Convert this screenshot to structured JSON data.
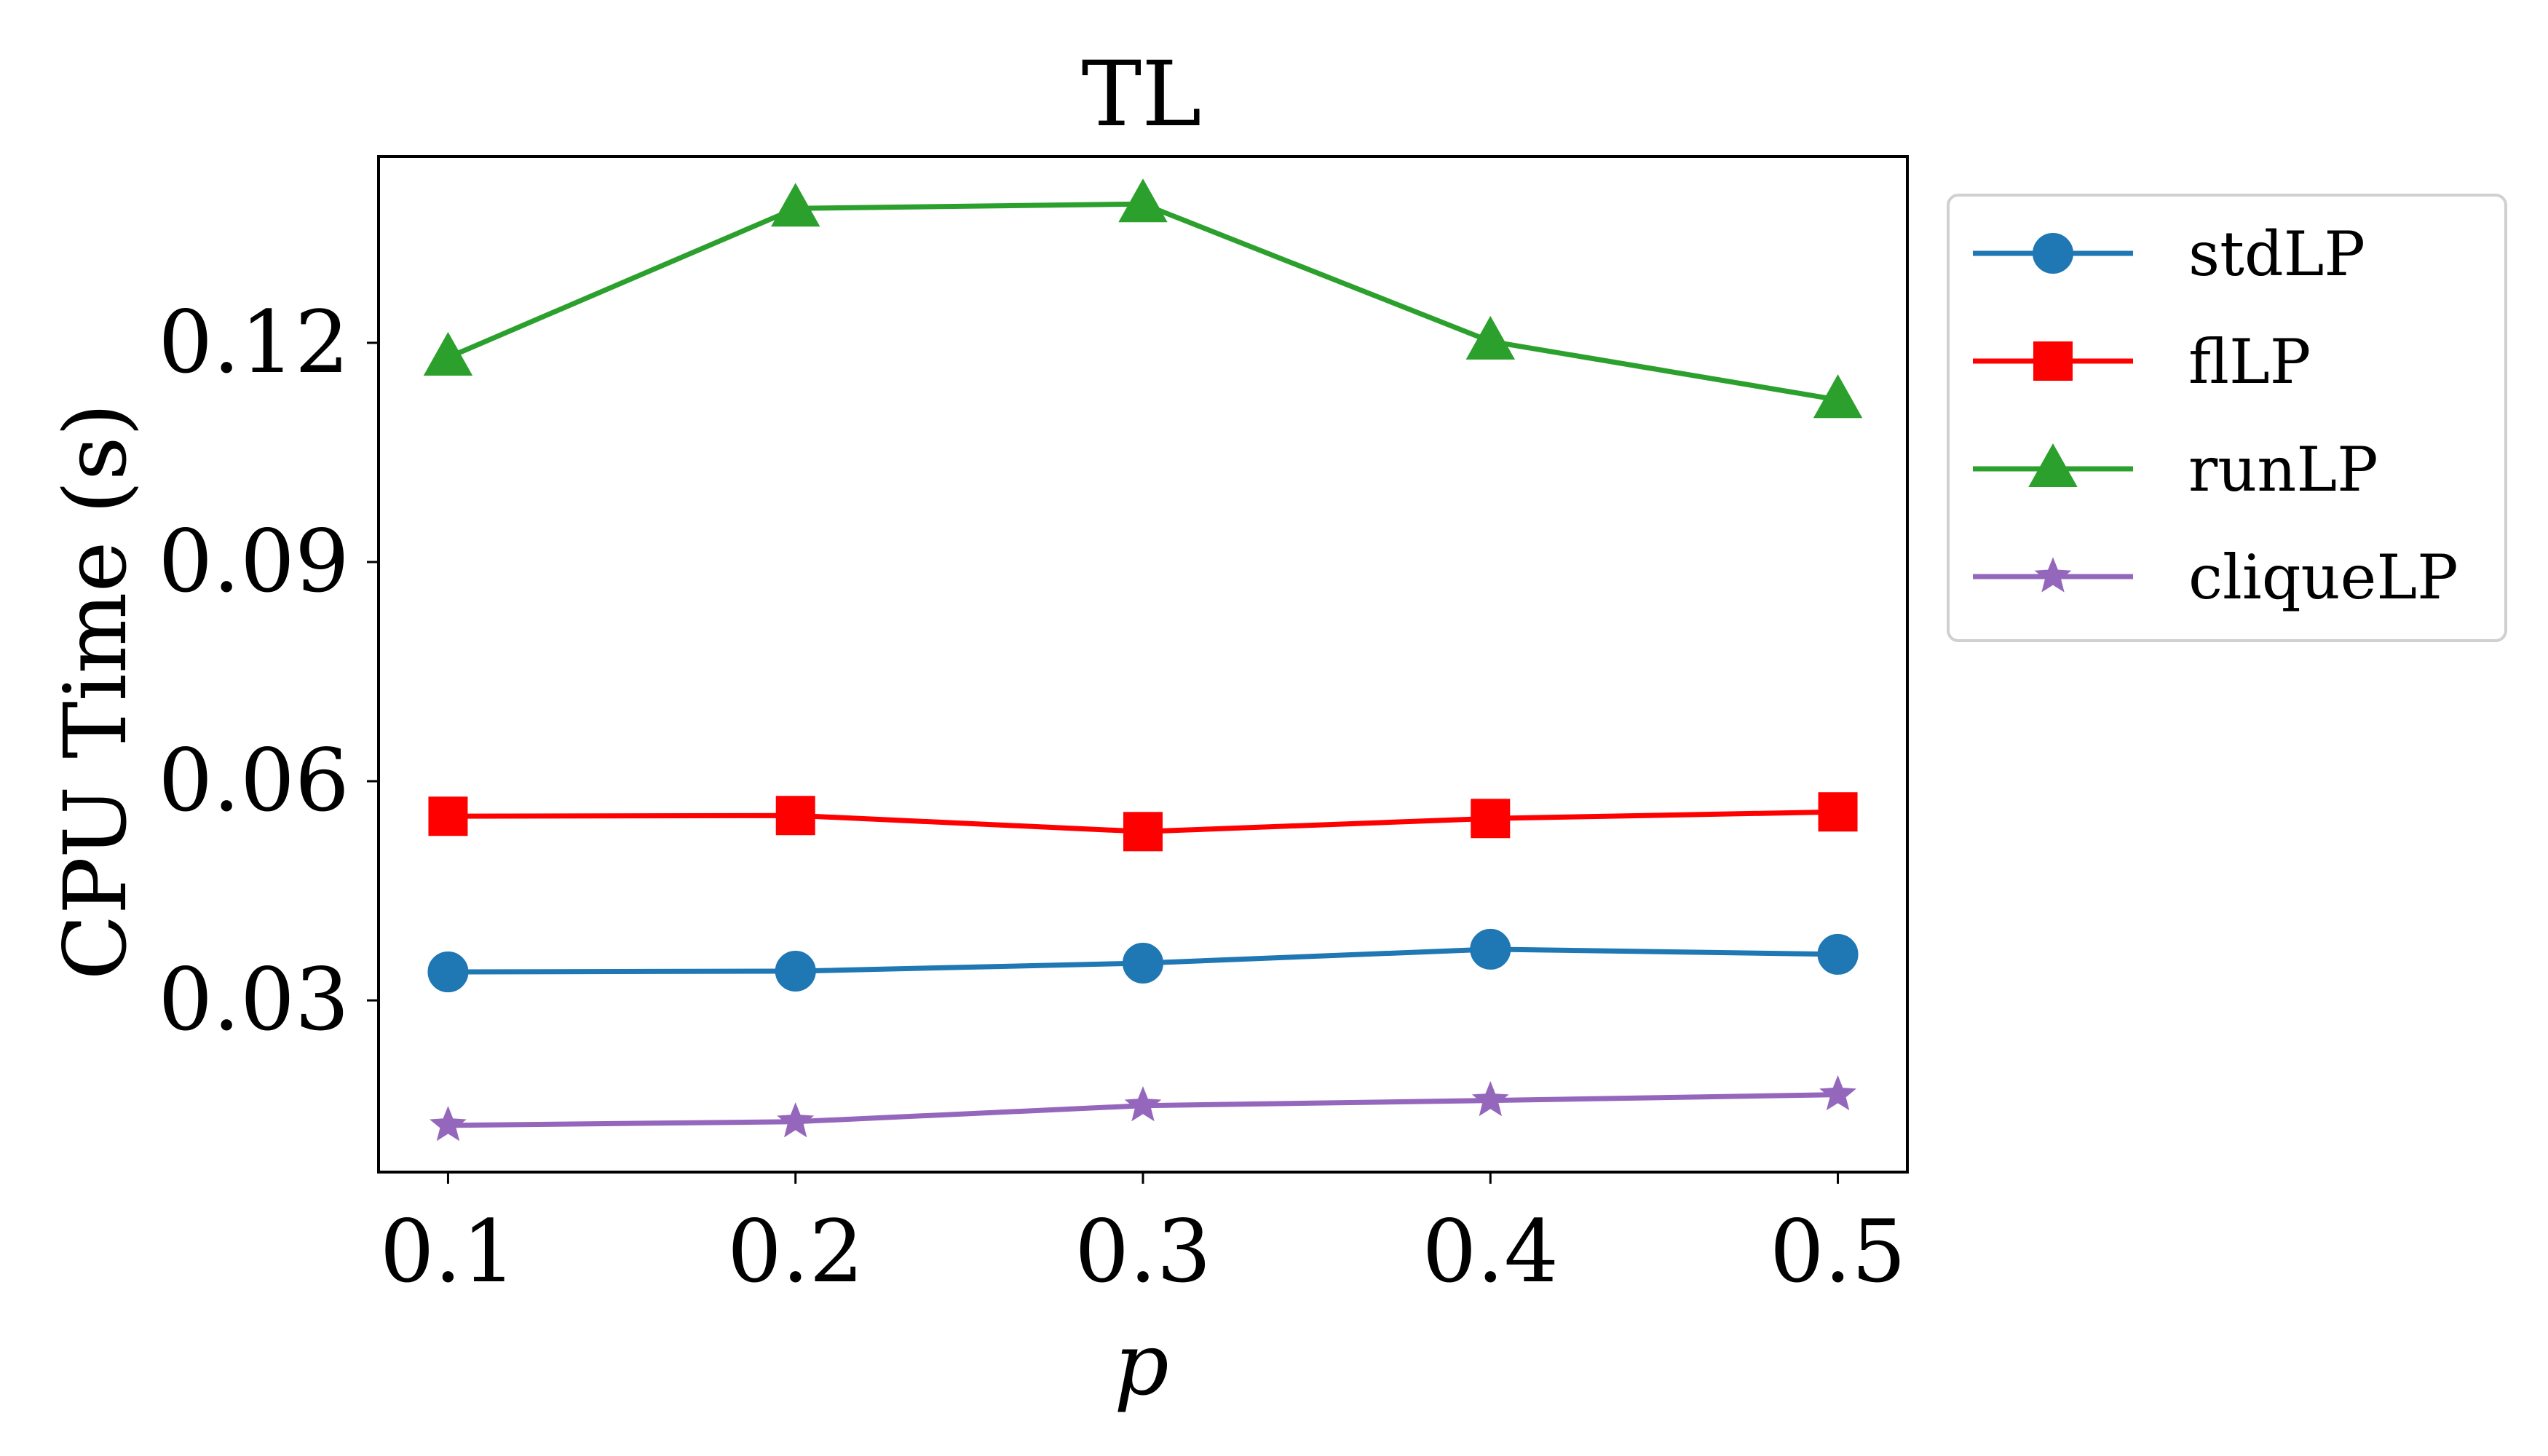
{
  "chart_data": {
    "type": "line",
    "title": "TL",
    "xlabel": "p",
    "ylabel": "CPU Time (s)",
    "x": [
      0.1,
      0.2,
      0.3,
      0.4,
      0.5
    ],
    "x_tick_labels": [
      "0.1",
      "0.2",
      "0.3",
      "0.4",
      "0.5"
    ],
    "xlim": [
      0.08,
      0.52
    ],
    "y_ticks": [
      0.03,
      0.06,
      0.09,
      0.12
    ],
    "y_tick_labels": [
      "0.03",
      "0.06",
      "0.09",
      "0.12"
    ],
    "ylim": [
      0.0065,
      0.1455
    ],
    "grid": false,
    "legend_position": "outside-right-top",
    "series": [
      {
        "name": "stdLP",
        "color": "#1f77b4",
        "marker": "circle",
        "values": [
          0.0339,
          0.034,
          0.0351,
          0.037,
          0.0363
        ]
      },
      {
        "name": "flLP",
        "color": "#ff0000",
        "marker": "square",
        "values": [
          0.0552,
          0.0553,
          0.0531,
          0.0549,
          0.0558
        ]
      },
      {
        "name": "runLP",
        "color": "#2ca02c",
        "marker": "triangle",
        "values": [
          0.118,
          0.1384,
          0.139,
          0.1202,
          0.1122
        ]
      },
      {
        "name": "cliqueLP",
        "color": "#9467bd",
        "marker": "star",
        "values": [
          0.0129,
          0.0134,
          0.0156,
          0.0163,
          0.0171
        ]
      }
    ]
  }
}
